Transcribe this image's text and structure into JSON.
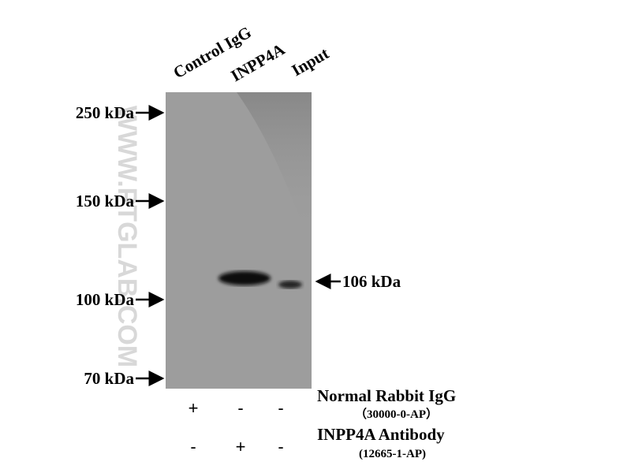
{
  "lanes": [
    "Control IgG",
    "INPP4A",
    "Input"
  ],
  "markers": [
    "250 kDa",
    "150 kDa",
    "100 kDa",
    "70 kDa"
  ],
  "band_label": "106 kDa",
  "watermark": "WWW.PTGLAB.COM",
  "treatments": [
    {
      "name": "Normal Rabbit IgG",
      "catalog": "（30000-0-AP）",
      "signs": [
        "+",
        "-",
        "-"
      ]
    },
    {
      "name": "INPP4A Antibody",
      "catalog": "(12665-1-AP)",
      "signs": [
        "-",
        "+",
        "-"
      ]
    }
  ]
}
